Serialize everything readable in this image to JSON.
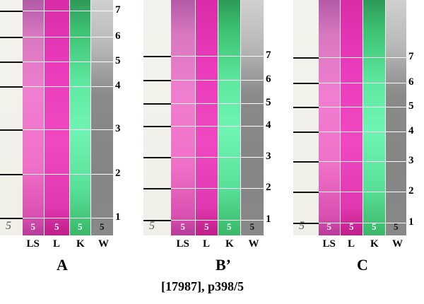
{
  "panels": [
    {
      "label": "A",
      "lanes": [
        "LS",
        "L",
        "K",
        "W"
      ],
      "bands": [
        "7",
        "6",
        "5",
        "4",
        "3",
        "2",
        "1"
      ],
      "spot_label": "5",
      "paper_label": "5"
    },
    {
      "label": "B’",
      "lanes": [
        "LS",
        "L",
        "K",
        "W"
      ],
      "bands": [
        "7",
        "6",
        "5",
        "4",
        "3",
        "2",
        "1"
      ],
      "spot_label": "5",
      "paper_label": "5"
    },
    {
      "label": "C",
      "lanes": [
        "LS",
        "L",
        "K",
        "W"
      ],
      "bands": [
        "7",
        "6",
        "5",
        "4",
        "3",
        "2",
        "1"
      ],
      "spot_label": "5",
      "paper_label": "5"
    }
  ],
  "caption": "[17987], p398/5",
  "colors": {
    "LS": "#f070c8",
    "L": "#e83cb8",
    "K": "#60e8a0",
    "W": "#8a8a8a"
  }
}
